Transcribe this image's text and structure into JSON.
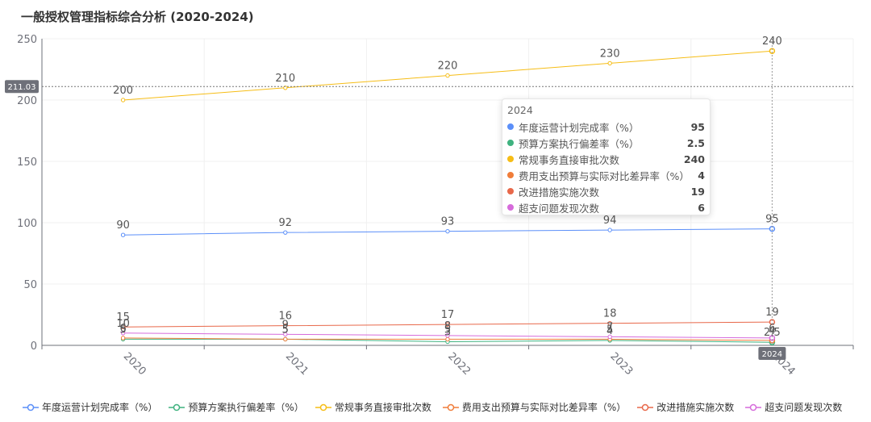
{
  "chart_data": {
    "type": "line",
    "title": "一般授权管理指标综合分析 (2020-2024)",
    "categories": [
      "2020",
      "2021",
      "2022",
      "2023",
      "2024"
    ],
    "ylim": [
      0,
      250
    ],
    "yticks": [
      "0",
      "50",
      "100",
      "150",
      "200",
      "250"
    ],
    "grid": true,
    "legend_position": "bottom",
    "series": [
      {
        "name": "年度运营计划完成率（%）",
        "color": "#5b8ff9",
        "values": [
          90,
          92,
          93,
          94,
          95
        ]
      },
      {
        "name": "预算方案执行偏差率（%）",
        "color": "#3fb27f",
        "values": [
          5,
          5,
          3,
          4,
          2.5
        ]
      },
      {
        "name": "常规事务直接审批次数",
        "color": "#f6bd16",
        "values": [
          200,
          210,
          220,
          230,
          240
        ]
      },
      {
        "name": "费用支出预算与实际对比差异率（%）",
        "color": "#f07d3a",
        "values": [
          6,
          5,
          5,
          5,
          4
        ]
      },
      {
        "name": "改进措施实施次数",
        "color": "#e8684a",
        "values": [
          15,
          16,
          17,
          18,
          19
        ]
      },
      {
        "name": "超支问题发现次数",
        "color": "#d66bdb",
        "values": [
          10,
          9,
          8,
          7,
          6
        ]
      }
    ],
    "crosshair": {
      "y_readout": "211.03",
      "x_readout": "2024"
    },
    "tooltip": {
      "title": "2024",
      "rows": [
        {
          "name": "年度运营计划完成率（%）",
          "value": "95",
          "color": "#5b8ff9"
        },
        {
          "name": "预算方案执行偏差率（%）",
          "value": "2.5",
          "color": "#3fb27f"
        },
        {
          "name": "常规事务直接审批次数",
          "value": "240",
          "color": "#f6bd16"
        },
        {
          "name": "费用支出预算与实际对比差异率（%）",
          "value": "4",
          "color": "#f07d3a"
        },
        {
          "name": "改进措施实施次数",
          "value": "19",
          "color": "#e8684a"
        },
        {
          "name": "超支问题发现次数",
          "value": "6",
          "color": "#d66bdb"
        }
      ]
    }
  }
}
